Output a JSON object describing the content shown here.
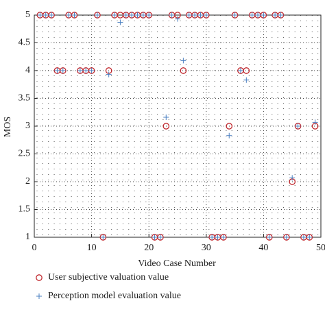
{
  "chart_data": {
    "type": "scatter",
    "x_label": "Video Case Number",
    "y_label": "MOS",
    "xlim": [
      0,
      50
    ],
    "xticks": [
      0,
      10,
      20,
      30,
      40,
      50
    ],
    "ylim": [
      1,
      5
    ],
    "yticks": [
      1,
      1.5,
      2,
      2.5,
      3,
      3.5,
      4,
      4.5,
      5
    ],
    "grid": true,
    "x": [
      1,
      2,
      3,
      4,
      5,
      6,
      7,
      8,
      9,
      10,
      11,
      12,
      13,
      14,
      15,
      16,
      17,
      18,
      19,
      20,
      21,
      22,
      23,
      24,
      25,
      26,
      27,
      28,
      29,
      30,
      31,
      32,
      33,
      34,
      35,
      36,
      37,
      38,
      39,
      40,
      41,
      42,
      43,
      44,
      45,
      46,
      47,
      48,
      49
    ],
    "series": [
      {
        "name": "User subjective valuation value",
        "color": "#c0272d",
        "marker": "circle",
        "values": [
          5,
          5,
          5,
          4,
          4,
          5,
          5,
          4,
          4,
          4,
          5,
          1,
          4,
          5,
          5,
          5,
          5,
          5,
          5,
          5,
          1,
          1,
          3,
          5,
          5,
          4,
          5,
          5,
          5,
          5,
          1,
          1,
          1,
          3,
          5,
          4,
          4,
          5,
          5,
          5,
          1,
          5,
          5,
          1,
          2,
          3,
          1,
          1,
          3
        ]
      },
      {
        "name": "Perception model evaluation value",
        "color": "#4a7fc1",
        "marker": "plus",
        "values": [
          5,
          5,
          5,
          4,
          4,
          5,
          5,
          4,
          4,
          4,
          5,
          1,
          3.93,
          5,
          4.87,
          5,
          5,
          5,
          5,
          5,
          1,
          1,
          3.16,
          5,
          4.93,
          4.18,
          5,
          5,
          5,
          5,
          1,
          1,
          1,
          2.83,
          5,
          4,
          3.83,
          5,
          5,
          5,
          1,
          5,
          5,
          1,
          2.07,
          3,
          1,
          1,
          3.07
        ]
      }
    ]
  }
}
